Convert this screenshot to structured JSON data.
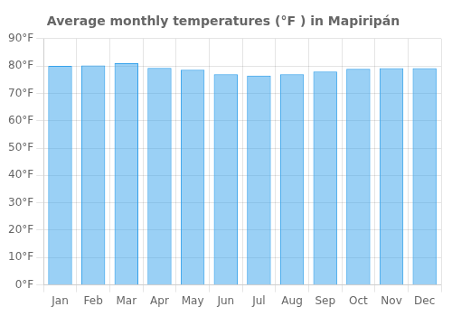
{
  "chart_data": {
    "type": "bar",
    "title": "Average monthly temperatures (°F ) in Mapiripán",
    "categories": [
      "Jan",
      "Feb",
      "Mar",
      "Apr",
      "May",
      "Jun",
      "Jul",
      "Aug",
      "Sep",
      "Oct",
      "Nov",
      "Dec"
    ],
    "values": [
      80.0,
      80.2,
      81.0,
      79.3,
      78.6,
      77.0,
      76.5,
      77.0,
      78.0,
      79.0,
      79.2,
      79.2
    ],
    "ylim": [
      0,
      90
    ],
    "yticks": [
      {
        "value": 0,
        "label": "0°F"
      },
      {
        "value": 10,
        "label": "10°F"
      },
      {
        "value": 20,
        "label": "20°F"
      },
      {
        "value": 30,
        "label": "30°F"
      },
      {
        "value": 40,
        "label": "40°F"
      },
      {
        "value": 50,
        "label": "50°F"
      },
      {
        "value": 60,
        "label": "60°F"
      },
      {
        "value": 70,
        "label": "70°F"
      },
      {
        "value": 80,
        "label": "80°F"
      },
      {
        "value": 90,
        "label": "90°F"
      }
    ],
    "grid": true
  }
}
